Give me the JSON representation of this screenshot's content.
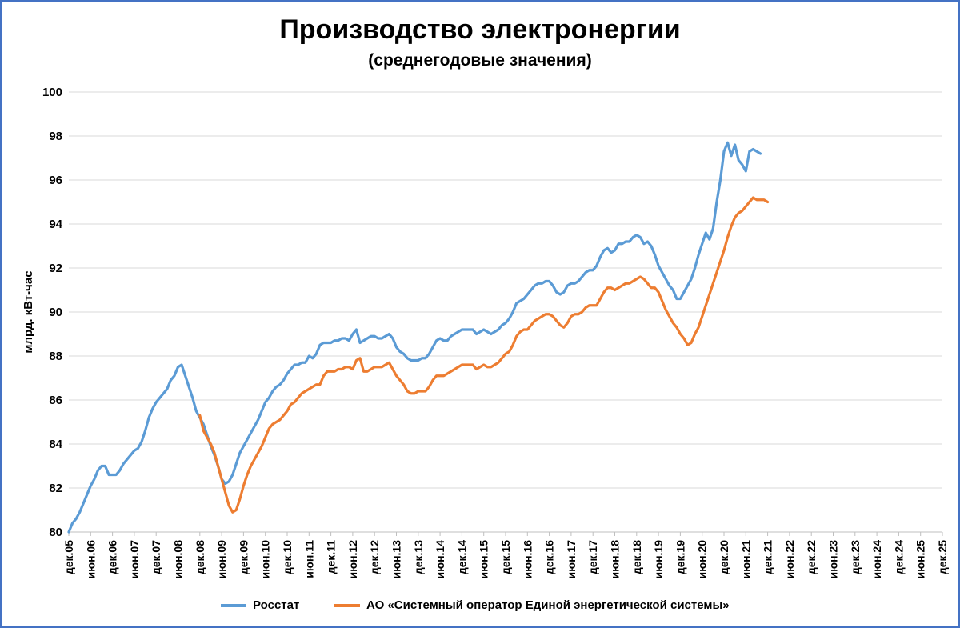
{
  "colors": {
    "rosstat": "#5b9bd5",
    "so_ues": "#ed7d31",
    "frame": "#4472c4",
    "grid": "#d9d9d9"
  },
  "chart_data": {
    "type": "line",
    "title": "Производство электронергии",
    "subtitle": "(среднегодовые значения)",
    "ylabel": "млрд. кВт-час",
    "xlabel": "",
    "ylim": [
      80,
      100
    ],
    "ytick_step": 2,
    "grid": true,
    "legend_position": "bottom",
    "x_tick_labels": [
      "дек.05",
      "июн.06",
      "дек.06",
      "июн.07",
      "дек.07",
      "июн.08",
      "дек.08",
      "июн.09",
      "дек.09",
      "июн.10",
      "дек.10",
      "июн.11",
      "дек.11",
      "июн.12",
      "дек.12",
      "июн.13",
      "дек.13",
      "июн.14",
      "дек.14",
      "июн.15",
      "дек.15",
      "июн.16",
      "дек.16",
      "июн.17",
      "дек.17",
      "июн.18",
      "дек.18",
      "июн.19",
      "дек.19",
      "июн.20",
      "дек.20",
      "июн.21",
      "дек.21",
      "июн.22",
      "дек.22",
      "июн.23",
      "дек.23",
      "июн.24",
      "дек.24",
      "июн.25",
      "дек.25"
    ],
    "x_start": "2005-12",
    "series": [
      {
        "name": "Росстат",
        "start": "2005-12",
        "values": [
          80.0,
          80.4,
          80.6,
          80.9,
          81.3,
          81.7,
          82.1,
          82.4,
          82.8,
          83.0,
          83.0,
          82.6,
          82.6,
          82.6,
          82.8,
          83.1,
          83.3,
          83.5,
          83.7,
          83.8,
          84.1,
          84.6,
          85.2,
          85.6,
          85.9,
          86.1,
          86.3,
          86.5,
          86.9,
          87.1,
          87.5,
          87.6,
          87.1,
          86.6,
          86.1,
          85.5,
          85.2,
          84.9,
          84.4,
          83.9,
          83.5,
          83.0,
          82.4,
          82.2,
          82.3,
          82.6,
          83.1,
          83.6,
          83.9,
          84.2,
          84.5,
          84.8,
          85.1,
          85.5,
          85.9,
          86.1,
          86.4,
          86.6,
          86.7,
          86.9,
          87.2,
          87.4,
          87.6,
          87.6,
          87.7,
          87.7,
          88.0,
          87.9,
          88.1,
          88.5,
          88.6,
          88.6,
          88.6,
          88.7,
          88.7,
          88.8,
          88.8,
          88.7,
          89.0,
          89.2,
          88.6,
          88.7,
          88.8,
          88.9,
          88.9,
          88.8,
          88.8,
          88.9,
          89.0,
          88.8,
          88.4,
          88.2,
          88.1,
          87.9,
          87.8,
          87.8,
          87.8,
          87.9,
          87.9,
          88.1,
          88.4,
          88.7,
          88.8,
          88.7,
          88.7,
          88.9,
          89.0,
          89.1,
          89.2,
          89.2,
          89.2,
          89.2,
          89.0,
          89.1,
          89.2,
          89.1,
          89.0,
          89.1,
          89.2,
          89.4,
          89.5,
          89.7,
          90.0,
          90.4,
          90.5,
          90.6,
          90.8,
          91.0,
          91.2,
          91.3,
          91.3,
          91.4,
          91.4,
          91.2,
          90.9,
          90.8,
          90.9,
          91.2,
          91.3,
          91.3,
          91.4,
          91.6,
          91.8,
          91.9,
          91.9,
          92.1,
          92.5,
          92.8,
          92.9,
          92.7,
          92.8,
          93.1,
          93.1,
          93.2,
          93.2,
          93.4,
          93.5,
          93.4,
          93.1,
          93.2,
          93.0,
          92.6,
          92.1,
          91.8,
          91.5,
          91.2,
          91.0,
          90.6,
          90.6,
          90.9,
          91.2,
          91.5,
          92.0,
          92.6,
          93.1,
          93.6,
          93.3,
          93.8,
          95.0,
          96.0,
          97.3,
          97.7,
          97.1,
          97.6,
          96.9,
          96.7,
          96.4,
          97.3,
          97.4,
          97.3,
          97.2
        ]
      },
      {
        "name": "АО «Системный оператор Единой энергетической системы»",
        "start": "2008-12",
        "values": [
          85.3,
          84.6,
          84.3,
          84.0,
          83.6,
          83.0,
          82.4,
          81.8,
          81.2,
          80.9,
          81.0,
          81.5,
          82.1,
          82.6,
          83.0,
          83.3,
          83.6,
          83.9,
          84.3,
          84.7,
          84.9,
          85.0,
          85.1,
          85.3,
          85.5,
          85.8,
          85.9,
          86.1,
          86.3,
          86.4,
          86.5,
          86.6,
          86.7,
          86.7,
          87.1,
          87.3,
          87.3,
          87.3,
          87.4,
          87.4,
          87.5,
          87.5,
          87.4,
          87.8,
          87.9,
          87.3,
          87.3,
          87.4,
          87.5,
          87.5,
          87.5,
          87.6,
          87.7,
          87.4,
          87.1,
          86.9,
          86.7,
          86.4,
          86.3,
          86.3,
          86.4,
          86.4,
          86.4,
          86.6,
          86.9,
          87.1,
          87.1,
          87.1,
          87.2,
          87.3,
          87.4,
          87.5,
          87.6,
          87.6,
          87.6,
          87.6,
          87.4,
          87.5,
          87.6,
          87.5,
          87.5,
          87.6,
          87.7,
          87.9,
          88.1,
          88.2,
          88.5,
          88.9,
          89.1,
          89.2,
          89.2,
          89.4,
          89.6,
          89.7,
          89.8,
          89.9,
          89.9,
          89.8,
          89.6,
          89.4,
          89.3,
          89.5,
          89.8,
          89.9,
          89.9,
          90.0,
          90.2,
          90.3,
          90.3,
          90.3,
          90.6,
          90.9,
          91.1,
          91.1,
          91.0,
          91.1,
          91.2,
          91.3,
          91.3,
          91.4,
          91.5,
          91.6,
          91.5,
          91.3,
          91.1,
          91.1,
          90.9,
          90.5,
          90.1,
          89.8,
          89.5,
          89.3,
          89.0,
          88.8,
          88.5,
          88.6,
          89.0,
          89.3,
          89.8,
          90.3,
          90.8,
          91.3,
          91.8,
          92.3,
          92.8,
          93.4,
          93.9,
          94.3,
          94.5,
          94.6,
          94.8,
          95.0,
          95.2,
          95.1,
          95.1,
          95.1,
          95.0
        ]
      }
    ]
  }
}
